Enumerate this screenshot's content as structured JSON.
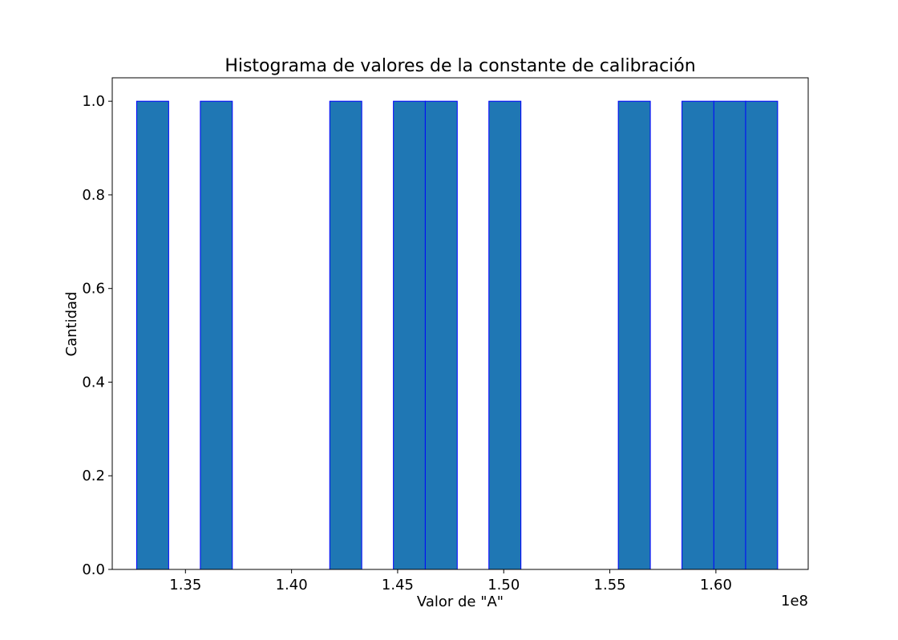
{
  "chart_data": {
    "type": "bar",
    "title": "Histograma de valores de la constante de calibración",
    "xlabel": "Valor de \"A\"",
    "ylabel": "Cantidad",
    "x_offset_label": "1e8",
    "x_scale": 100000000,
    "xlim": [
      1.3155,
      1.6435
    ],
    "ylim": [
      0,
      1.05
    ],
    "grid": false,
    "x_ticks": [
      1.35,
      1.4,
      1.45,
      1.5,
      1.55,
      1.6
    ],
    "x_tick_labels": [
      "1.35",
      "1.40",
      "1.45",
      "1.50",
      "1.55",
      "1.60"
    ],
    "y_ticks": [
      0.0,
      0.2,
      0.4,
      0.6,
      0.8,
      1.0
    ],
    "y_tick_labels": [
      "0.0",
      "0.2",
      "0.4",
      "0.6",
      "0.8",
      "1.0"
    ],
    "bin_width": 0.0151,
    "bin_edges_start": [
      1.327,
      1.357,
      1.418,
      1.448,
      1.463,
      1.493,
      1.554,
      1.584,
      1.599,
      1.614
    ],
    "values": [
      1,
      1,
      1,
      1,
      1,
      1,
      1,
      1,
      1,
      1
    ],
    "bar_fill": "#1f77b4",
    "bar_edge": "#0000ff"
  }
}
